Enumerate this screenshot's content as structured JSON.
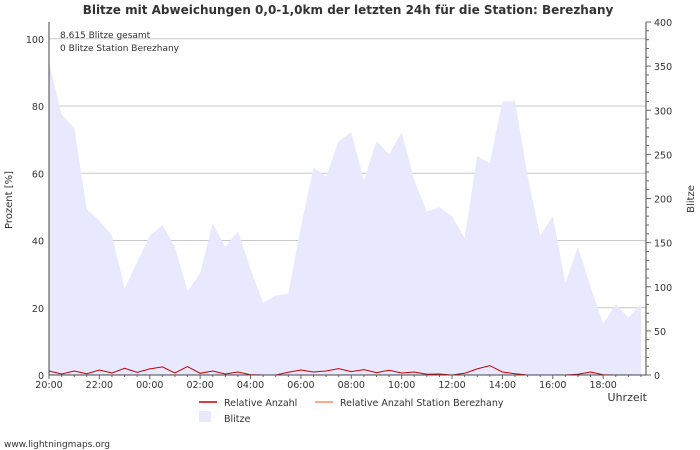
{
  "chart_data": {
    "type": "area",
    "title": "Blitze mit Abweichungen 0,0-1,0km der letzten 24h für die Station: Berezhany",
    "annotations": [
      "8.615 Blitze gesamt",
      "0 Blitze Station Berezhany"
    ],
    "ylabel_left": "Prozent   [%]",
    "ylabel_right": "Blitze",
    "xlabel": "Uhrzeit",
    "ylim_left": [
      0,
      105
    ],
    "ylim_right": [
      0,
      400
    ],
    "yticks_left": [
      "0",
      "20",
      "40",
      "60",
      "80",
      "100"
    ],
    "yticks_right": [
      "0",
      "50",
      "100",
      "150",
      "200",
      "250",
      "300",
      "350",
      "400"
    ],
    "xlim_hours": [
      0,
      23.7
    ],
    "x_tick_labels": [
      "20:00",
      "22:00",
      "00:00",
      "02:00",
      "04:00",
      "06:00",
      "08:00",
      "10:00",
      "12:00",
      "14:00",
      "16:00",
      "18:00"
    ],
    "x_tick_hours": [
      0,
      2,
      4,
      6,
      8,
      10,
      12,
      14,
      16,
      18,
      20,
      22
    ],
    "x_hours": [
      0,
      0.5,
      1,
      1.5,
      2,
      2.5,
      3,
      3.5,
      4,
      4.5,
      5,
      5.5,
      6,
      6.5,
      7,
      7.5,
      8,
      8.5,
      9,
      9.5,
      10,
      10.5,
      11,
      11.5,
      12,
      12.5,
      13,
      13.5,
      14,
      14.5,
      15,
      15.5,
      16,
      16.5,
      17,
      17.5,
      18,
      18.5,
      19,
      19.5,
      20,
      20.5,
      21,
      21.5,
      22,
      22.5,
      23,
      23.5
    ],
    "series": [
      {
        "name": "Blitze",
        "axis": "right",
        "color": "#e8e8ff",
        "values": [
          355,
          295,
          280,
          188,
          175,
          158,
          98,
          128,
          158,
          170,
          145,
          95,
          115,
          172,
          145,
          163,
          120,
          82,
          90,
          92,
          168,
          235,
          225,
          265,
          275,
          220,
          265,
          250,
          275,
          220,
          185,
          190,
          180,
          155,
          248,
          240,
          310,
          310,
          225,
          158,
          180,
          105,
          145,
          100,
          58,
          80,
          65,
          80
        ]
      },
      {
        "name": "Relative Anzahl",
        "axis": "left",
        "color": "#cc0000",
        "values": [
          1.2,
          0.3,
          1.2,
          0.4,
          1.5,
          0.6,
          2.0,
          0.8,
          1.8,
          2.4,
          0.6,
          2.5,
          0.5,
          1.2,
          0.3,
          0.9,
          0.1,
          0,
          0,
          0.8,
          1.5,
          0.9,
          1.2,
          1.9,
          1.0,
          1.6,
          0.7,
          1.4,
          0.6,
          0.9,
          0.2,
          0.3,
          0,
          0.5,
          1.8,
          2.8,
          0.9,
          0.4,
          0,
          0,
          0,
          0,
          0.2,
          0.9,
          0.1,
          0,
          0,
          0
        ]
      },
      {
        "name": "Relative Anzahl Station Berezhany",
        "axis": "left",
        "color": "#ff8866",
        "values": [
          0,
          0,
          0,
          0,
          0,
          0,
          0,
          0,
          0,
          0,
          0,
          0,
          0,
          0,
          0,
          0,
          0,
          0,
          0,
          0,
          0,
          0,
          0,
          0,
          0,
          0,
          0,
          0,
          0,
          0,
          0,
          0,
          0,
          0,
          0,
          0,
          0,
          0,
          0,
          0,
          0,
          0,
          0,
          0,
          0,
          0,
          0,
          0
        ]
      }
    ],
    "legend": [
      "Relative Anzahl",
      "Relative Anzahl Station Berezhany",
      "Blitze"
    ],
    "grid": true
  },
  "footer": {
    "source": "www.lightningmaps.org"
  }
}
